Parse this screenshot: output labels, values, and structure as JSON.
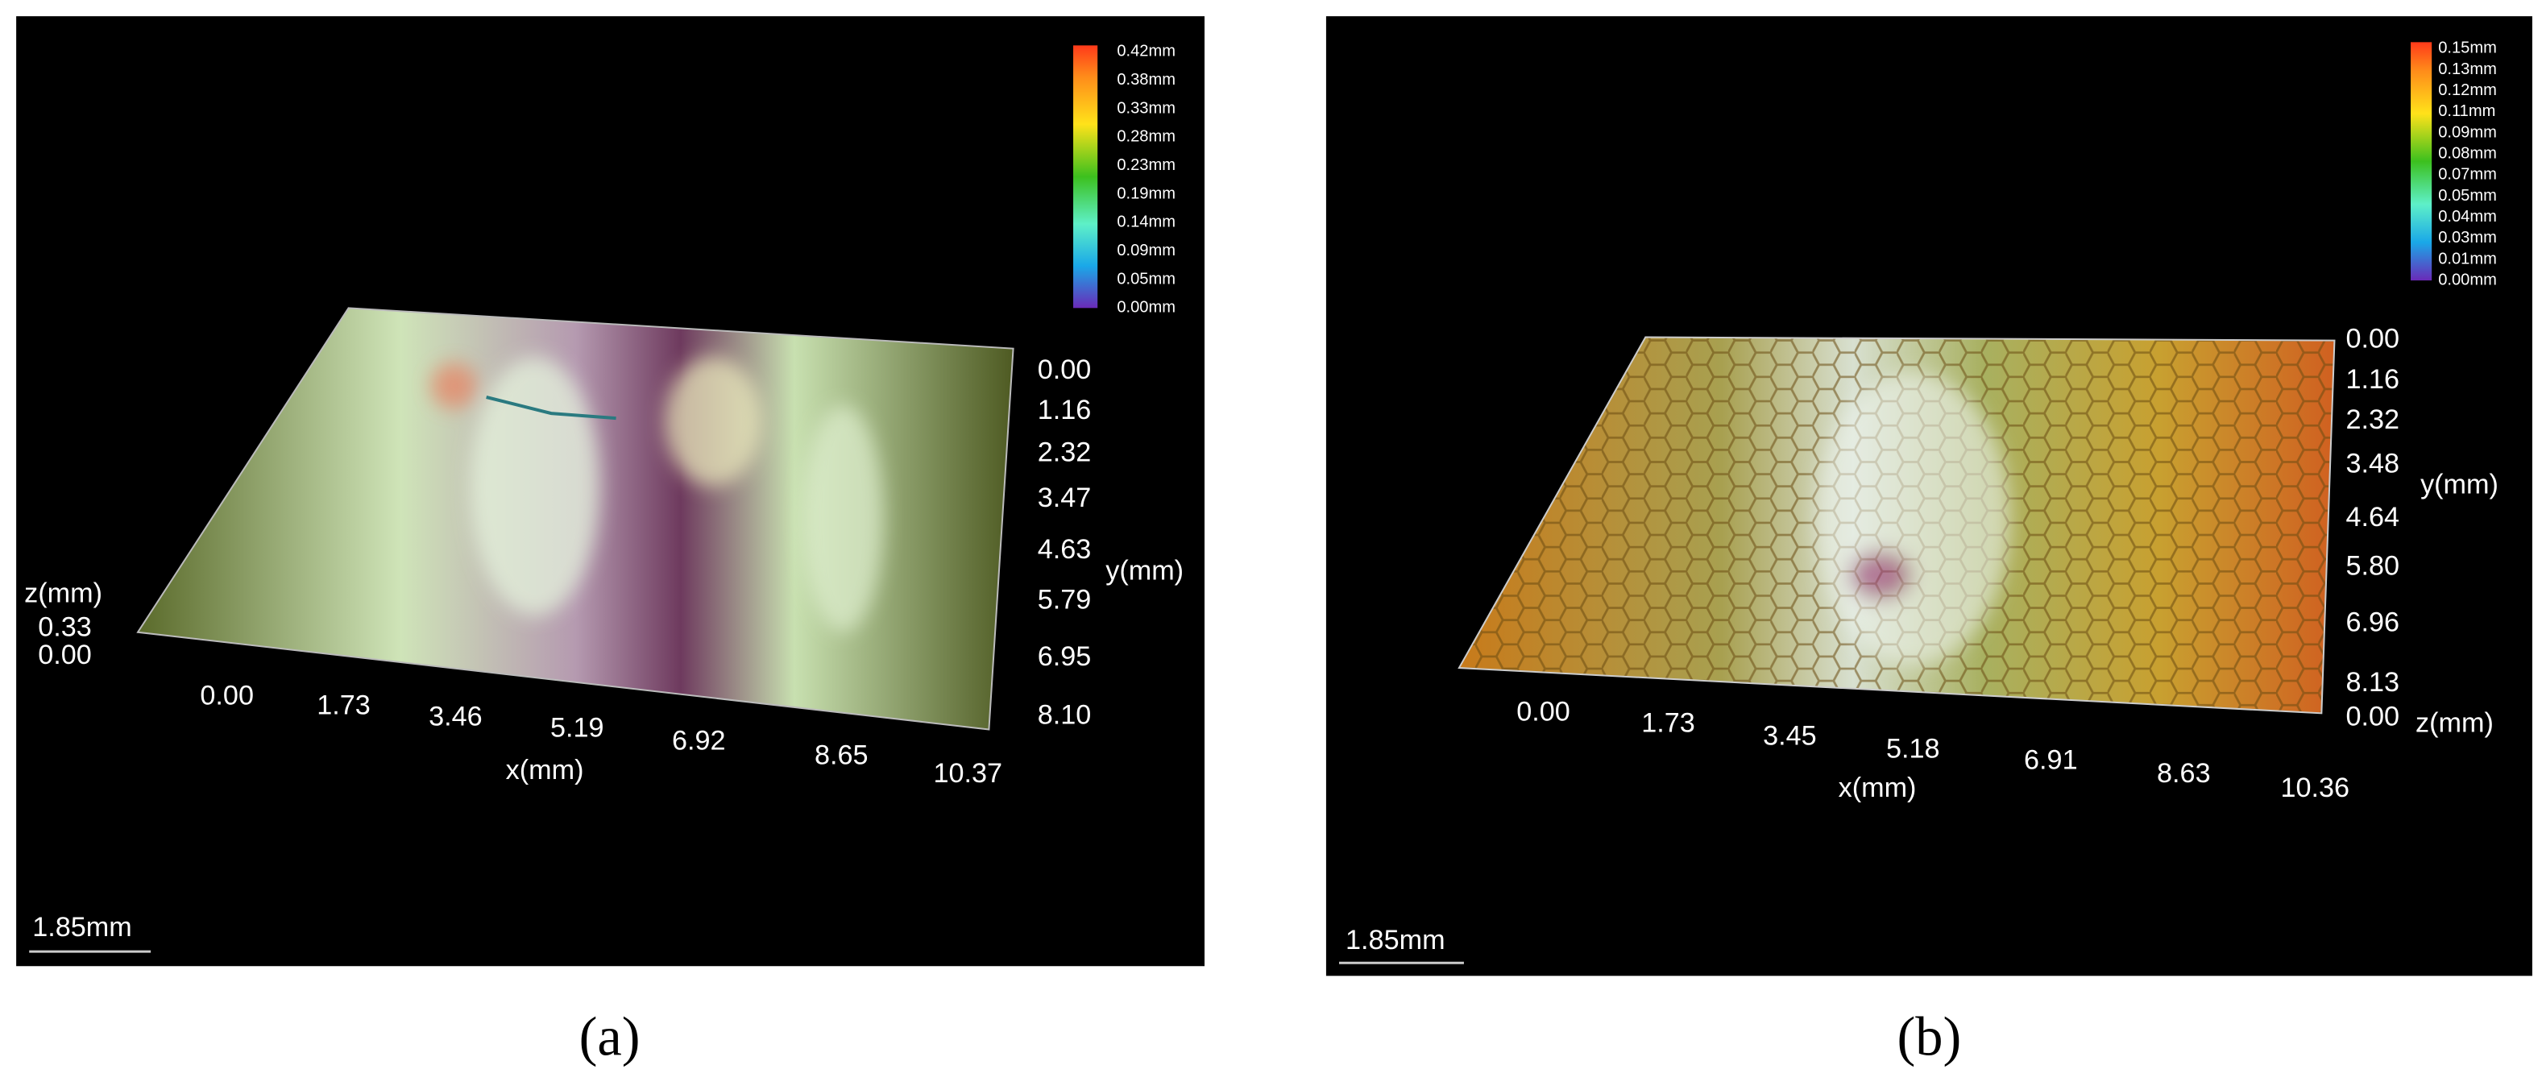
{
  "panels": [
    {
      "caption": "(a)",
      "colorbar": [
        "0.42mm",
        "0.38mm",
        "0.33mm",
        "0.28mm",
        "0.23mm",
        "0.19mm",
        "0.14mm",
        "0.09mm",
        "0.05mm",
        "0.00mm"
      ],
      "z_axis": {
        "label": "z(mm)",
        "ticks": [
          "0.33",
          "0.00"
        ]
      },
      "y_axis": {
        "label": "y(mm)",
        "ticks": [
          "0.00",
          "1.16",
          "2.32",
          "3.47",
          "4.63",
          "5.79",
          "6.95",
          "8.10"
        ]
      },
      "x_axis": {
        "label": "x(mm)",
        "ticks": [
          "0.00",
          "1.73",
          "3.46",
          "5.19",
          "6.92",
          "8.65",
          "10.37"
        ]
      },
      "scale_bar": "1.85mm"
    },
    {
      "caption": "(b)",
      "colorbar": [
        "0.15mm",
        "0.13mm",
        "0.12mm",
        "0.11mm",
        "0.09mm",
        "0.08mm",
        "0.07mm",
        "0.05mm",
        "0.04mm",
        "0.03mm",
        "0.01mm",
        "0.00mm"
      ],
      "z_axis": {
        "label": "z(mm)",
        "ticks": [
          "0.00"
        ]
      },
      "y_axis": {
        "label": "y(mm)",
        "ticks": [
          "0.00",
          "1.16",
          "2.32",
          "3.48",
          "4.64",
          "5.80",
          "6.96",
          "8.13"
        ]
      },
      "x_axis": {
        "label": "x(mm)",
        "ticks": [
          "0.00",
          "1.73",
          "3.45",
          "5.18",
          "6.91",
          "8.63",
          "10.36"
        ]
      },
      "scale_bar": "1.85mm"
    }
  ]
}
